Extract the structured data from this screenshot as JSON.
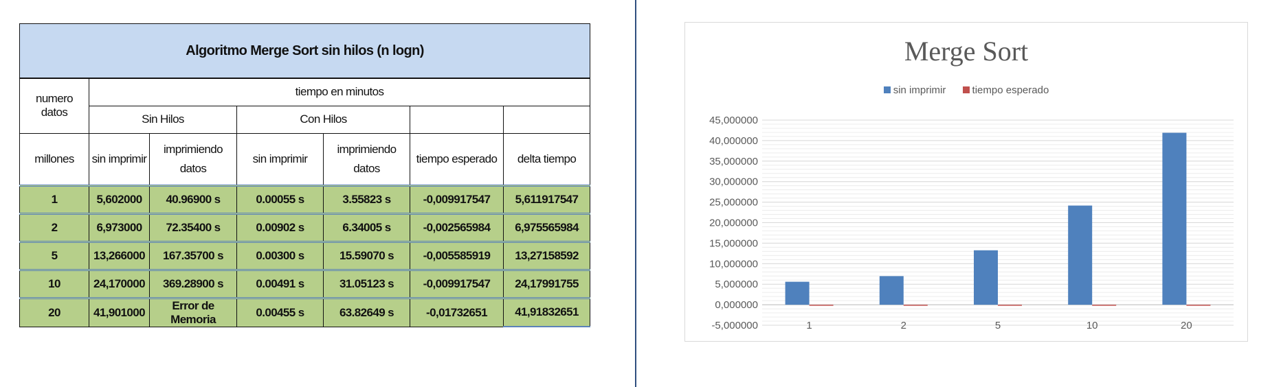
{
  "table": {
    "title": "Algoritmo Merge Sort sin hilos (n logn)",
    "col_numero_datos": "numero datos",
    "col_tiempo_minutos": "tiempo en minutos",
    "group_sin_hilos": "Sin Hilos",
    "group_con_hilos": "Con Hilos",
    "sub_headers": [
      "millones",
      "sin imprimir",
      "imprimiendo datos",
      "sin imprimir",
      "imprimiendo datos",
      "tiempo esperado",
      "delta tiempo"
    ],
    "rows": [
      [
        "1",
        "5,602000",
        "40.96900 s",
        "0.00055 s",
        "3.55823 s",
        "-0,009917547",
        "5,611917547"
      ],
      [
        "2",
        "6,973000",
        "72.35400 s",
        "0.00902 s",
        "6.34005 s",
        "-0,002565984",
        "6,975565984"
      ],
      [
        "5",
        "13,266000",
        "167.35700 s",
        "0.00300 s",
        "15.59070 s",
        "-0,005585919",
        "13,27158592"
      ],
      [
        "10",
        "24,170000",
        "369.28900 s",
        "0.00491 s",
        "31.05123 s",
        "-0,009917547",
        "24,17991755"
      ],
      [
        "20",
        "41,901000",
        "Error de Memoria",
        "0.00455 s",
        "63.82649 s",
        "-0,01732651",
        "41,91832651"
      ]
    ]
  },
  "chart_data": {
    "type": "bar",
    "title": "Merge Sort",
    "categories": [
      "1",
      "2",
      "5",
      "10",
      "20"
    ],
    "series": [
      {
        "name": "sin imprimir",
        "values": [
          5.602,
          6.973,
          13.266,
          24.17,
          41.901
        ],
        "color": "#4f81bd"
      },
      {
        "name": "tiempo esperado",
        "values": [
          -0.009917547,
          -0.002565984,
          -0.005585919,
          -0.009917547,
          -0.01732651
        ],
        "color": "#c0504d"
      }
    ],
    "ylim": [
      -5,
      45
    ],
    "yticks": [
      "-5,000000",
      "0,000000",
      "5,000000",
      "10,000000",
      "15,000000",
      "20,000000",
      "25,000000",
      "30,000000",
      "35,000000",
      "40,000000",
      "45,000000"
    ],
    "ytick_values": [
      -5,
      0,
      5,
      10,
      15,
      20,
      25,
      30,
      35,
      40,
      45
    ],
    "legend_position": "top",
    "grid": true
  }
}
